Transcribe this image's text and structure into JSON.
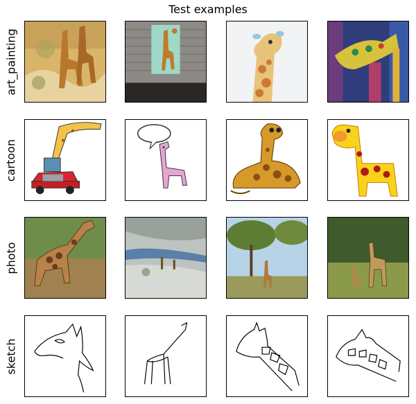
{
  "figure": {
    "title": "Test examples",
    "rows": [
      {
        "label": "art_painting",
        "images": [
          "giraffe-painting-icon",
          "giraffe-wall-poster-icon",
          "giraffe-watercolor-icon",
          "giraffe-abstract-painting-icon"
        ]
      },
      {
        "label": "cartoon",
        "images": [
          "giraffe-in-car-icon",
          "giraffe-speech-bubble-icon",
          "giraffe-lying-cartoon-icon",
          "giraffe-yellow-cartoon-icon"
        ]
      },
      {
        "label": "photo",
        "images": [
          "giraffe-photo-walking-icon",
          "giraffe-aerial-photo-icon",
          "giraffe-savanna-photo-icon",
          "giraffe-forest-photo-icon"
        ]
      },
      {
        "label": "sketch",
        "images": [
          "giraffe-head-sketch-icon",
          "giraffe-full-sketch-icon",
          "giraffe-neck-sketch-icon",
          "giraffe-spotted-sketch-icon"
        ]
      }
    ]
  }
}
